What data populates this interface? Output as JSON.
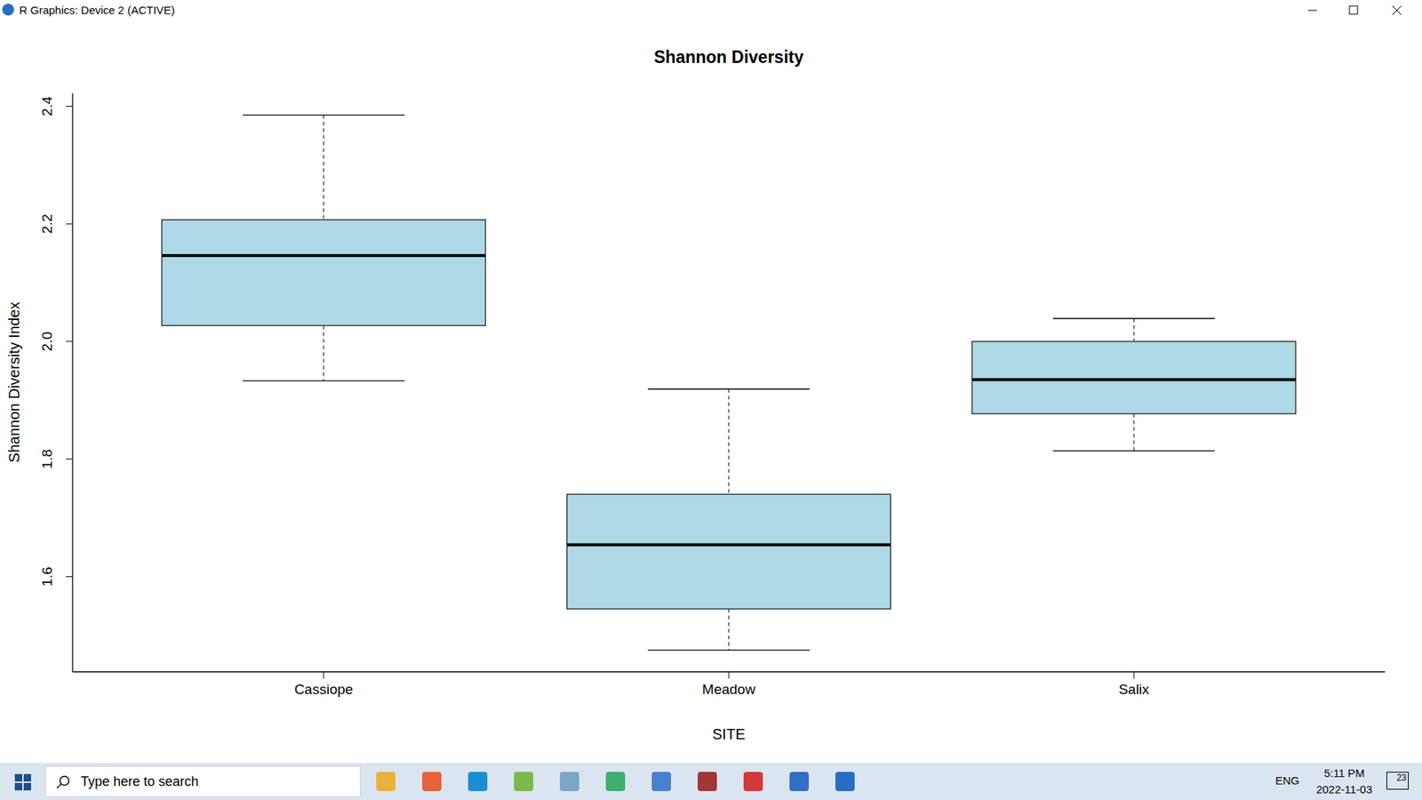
{
  "window": {
    "title": "R Graphics: Device 2 (ACTIVE)"
  },
  "chart_data": {
    "type": "boxplot",
    "title": "Shannon Diversity",
    "x_label": "SITE",
    "y_label": "Shannon Diversity Index",
    "categories": [
      "Cassiope",
      "Meadow",
      "Salix"
    ],
    "min": [
      1.933,
      1.475,
      1.814
    ],
    "q1": [
      2.027,
      1.545,
      1.877
    ],
    "median": [
      2.146,
      1.654,
      1.935
    ],
    "q3": [
      2.207,
      1.74,
      2.0
    ],
    "max": [
      2.385,
      1.919,
      2.039
    ],
    "color": "#add8e6",
    "ylim": [
      1.438,
      2.422
    ],
    "yticks": [
      1.6,
      1.8,
      {
        "value": 2,
        "label": "2.0"
      },
      2.2,
      2.4
    ]
  },
  "taskbar": {
    "search": "Type here to search",
    "language": "ENG",
    "time": "5:11 PM",
    "date": "2022-11-03",
    "notifications": 23
  }
}
